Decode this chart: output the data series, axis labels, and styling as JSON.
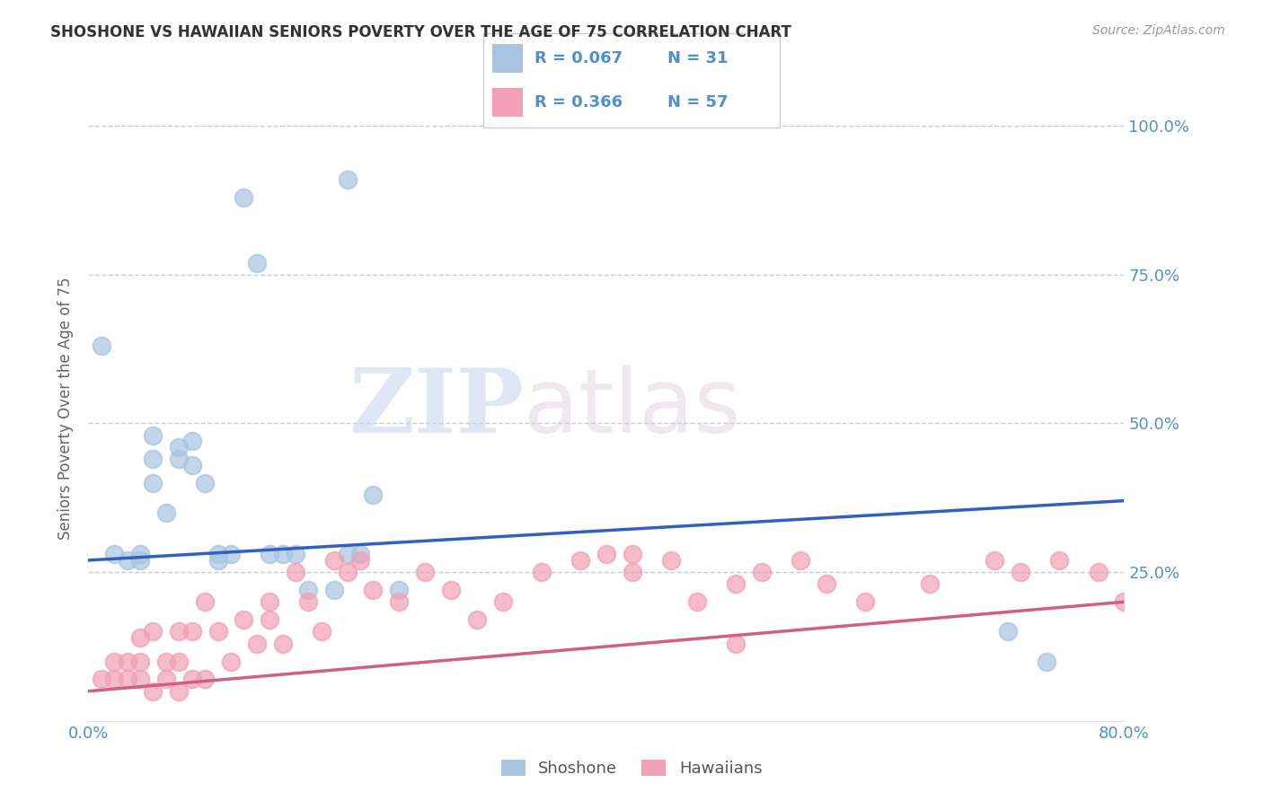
{
  "title": "SHOSHONE VS HAWAIIAN SENIORS POVERTY OVER THE AGE OF 75 CORRELATION CHART",
  "source": "Source: ZipAtlas.com",
  "ylabel": "Seniors Poverty Over the Age of 75",
  "watermark_zip": "ZIP",
  "watermark_atlas": "atlas",
  "legend_label1": "Shoshone",
  "legend_label2": "Hawaiians",
  "R1": "0.067",
  "N1": "31",
  "R2": "0.366",
  "N2": "57",
  "color1": "#a8c4e0",
  "color2": "#f2a0b5",
  "line_color1": "#3060c0",
  "line_color2": "#d06080",
  "tick_color": "#5090d0",
  "xlim": [
    0.0,
    0.8
  ],
  "ylim": [
    0.0,
    1.05
  ],
  "xticks": [
    0.0,
    0.8
  ],
  "xticklabels": [
    "0.0%",
    "80.0%"
  ],
  "yticks": [
    0.25,
    0.5,
    0.75,
    1.0
  ],
  "yticklabels": [
    "25.0%",
    "50.0%",
    "75.0%",
    "100.0%"
  ],
  "shoshone_x": [
    0.01,
    0.02,
    0.03,
    0.04,
    0.04,
    0.05,
    0.05,
    0.05,
    0.06,
    0.07,
    0.07,
    0.08,
    0.08,
    0.09,
    0.1,
    0.1,
    0.11,
    0.12,
    0.13,
    0.14,
    0.15,
    0.16,
    0.17,
    0.19,
    0.2,
    0.21,
    0.22,
    0.24,
    0.71,
    0.74,
    0.2
  ],
  "shoshone_y": [
    0.63,
    0.28,
    0.27,
    0.28,
    0.27,
    0.44,
    0.48,
    0.4,
    0.35,
    0.46,
    0.44,
    0.47,
    0.43,
    0.4,
    0.27,
    0.28,
    0.28,
    0.88,
    0.77,
    0.28,
    0.28,
    0.28,
    0.22,
    0.22,
    0.28,
    0.28,
    0.38,
    0.22,
    0.15,
    0.1,
    0.91
  ],
  "hawaiians_x": [
    0.01,
    0.02,
    0.02,
    0.03,
    0.03,
    0.04,
    0.04,
    0.04,
    0.05,
    0.05,
    0.06,
    0.06,
    0.07,
    0.07,
    0.07,
    0.08,
    0.08,
    0.09,
    0.09,
    0.1,
    0.11,
    0.12,
    0.13,
    0.14,
    0.14,
    0.15,
    0.16,
    0.17,
    0.18,
    0.19,
    0.2,
    0.21,
    0.22,
    0.24,
    0.26,
    0.28,
    0.3,
    0.32,
    0.35,
    0.38,
    0.4,
    0.42,
    0.45,
    0.47,
    0.5,
    0.52,
    0.55,
    0.57,
    0.6,
    0.65,
    0.7,
    0.72,
    0.75,
    0.78,
    0.8,
    0.42,
    0.5
  ],
  "hawaiians_y": [
    0.07,
    0.07,
    0.1,
    0.07,
    0.1,
    0.07,
    0.1,
    0.14,
    0.05,
    0.15,
    0.07,
    0.1,
    0.05,
    0.1,
    0.15,
    0.07,
    0.15,
    0.07,
    0.2,
    0.15,
    0.1,
    0.17,
    0.13,
    0.17,
    0.2,
    0.13,
    0.25,
    0.2,
    0.15,
    0.27,
    0.25,
    0.27,
    0.22,
    0.2,
    0.25,
    0.22,
    0.17,
    0.2,
    0.25,
    0.27,
    0.28,
    0.25,
    0.27,
    0.2,
    0.23,
    0.25,
    0.27,
    0.23,
    0.2,
    0.23,
    0.27,
    0.25,
    0.27,
    0.25,
    0.2,
    0.28,
    0.13
  ],
  "line1_start_y": 0.27,
  "line1_end_y": 0.37,
  "line2_start_y": 0.05,
  "line2_end_y": 0.2
}
